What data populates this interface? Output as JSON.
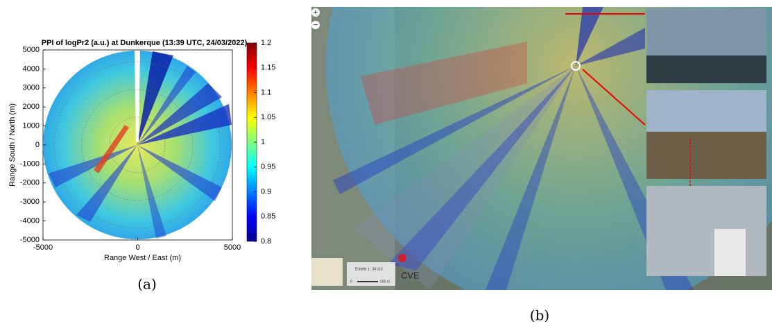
{
  "panel_a": {
    "title": "PPI  of logPr2 (a.u.) at Dunkerque (13:39 UTC, 24/03/2022)",
    "xlabel": "Range West / East (m)",
    "ylabel": "Range South / North (m)",
    "xlim": [
      -5000,
      5000
    ],
    "xticks": [
      -5000,
      0,
      5000
    ],
    "ylim": [
      -5000,
      5000
    ],
    "yticks": [
      -5000,
      -4000,
      -3000,
      -2000,
      -1000,
      0,
      1000,
      2000,
      3000,
      4000,
      5000
    ],
    "colorbar": {
      "lim": [
        0.8,
        1.2
      ],
      "ticks": [
        0.8,
        0.85,
        0.9,
        0.95,
        1,
        1.05,
        1.1,
        1.15,
        1.2
      ]
    },
    "caption": "(a)"
  },
  "panel_b": {
    "zoom_in": "+",
    "zoom_out": "−",
    "site_label": "CVE",
    "scale_label": "Echelle 1 : 34 110",
    "scale_bar_start": "0",
    "scale_bar_label": "500 m",
    "caption": "(b)"
  }
}
